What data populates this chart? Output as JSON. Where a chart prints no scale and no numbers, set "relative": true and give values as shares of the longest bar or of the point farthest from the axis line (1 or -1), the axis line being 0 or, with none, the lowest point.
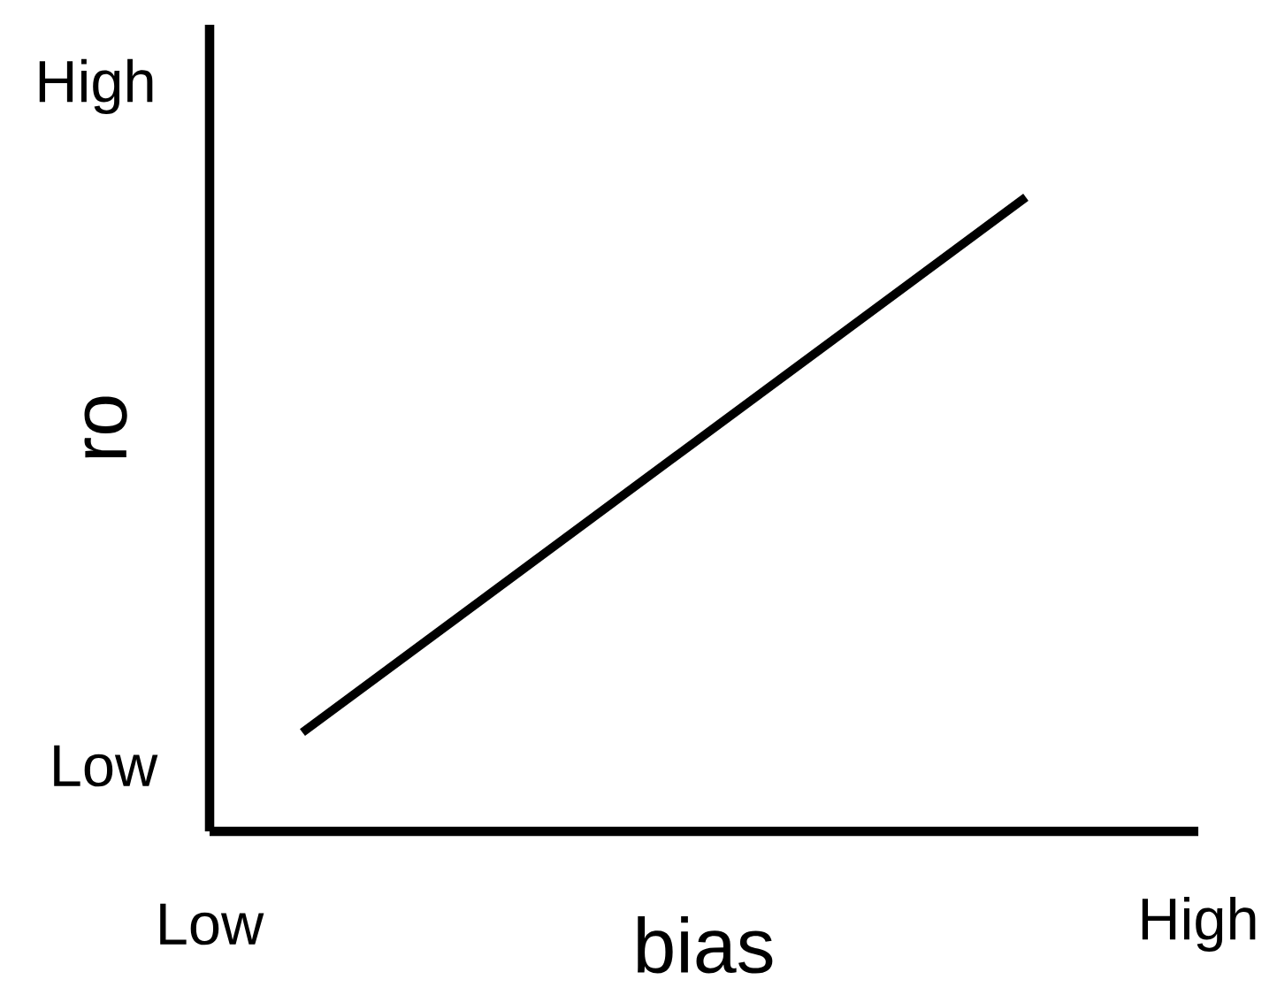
{
  "chart_data": {
    "type": "line",
    "xlabel": "bias",
    "ylabel": "ro",
    "relative": true,
    "categories": [
      null,
      null
    ],
    "series": [
      {
        "color": "#000000",
        "values": [
          0.156,
          1
        ]
      }
    ],
    "annotations": [
      "High",
      "Low",
      "Low",
      "High"
    ],
    "marker": "none",
    "line_style": "solid",
    "grid": false
  }
}
